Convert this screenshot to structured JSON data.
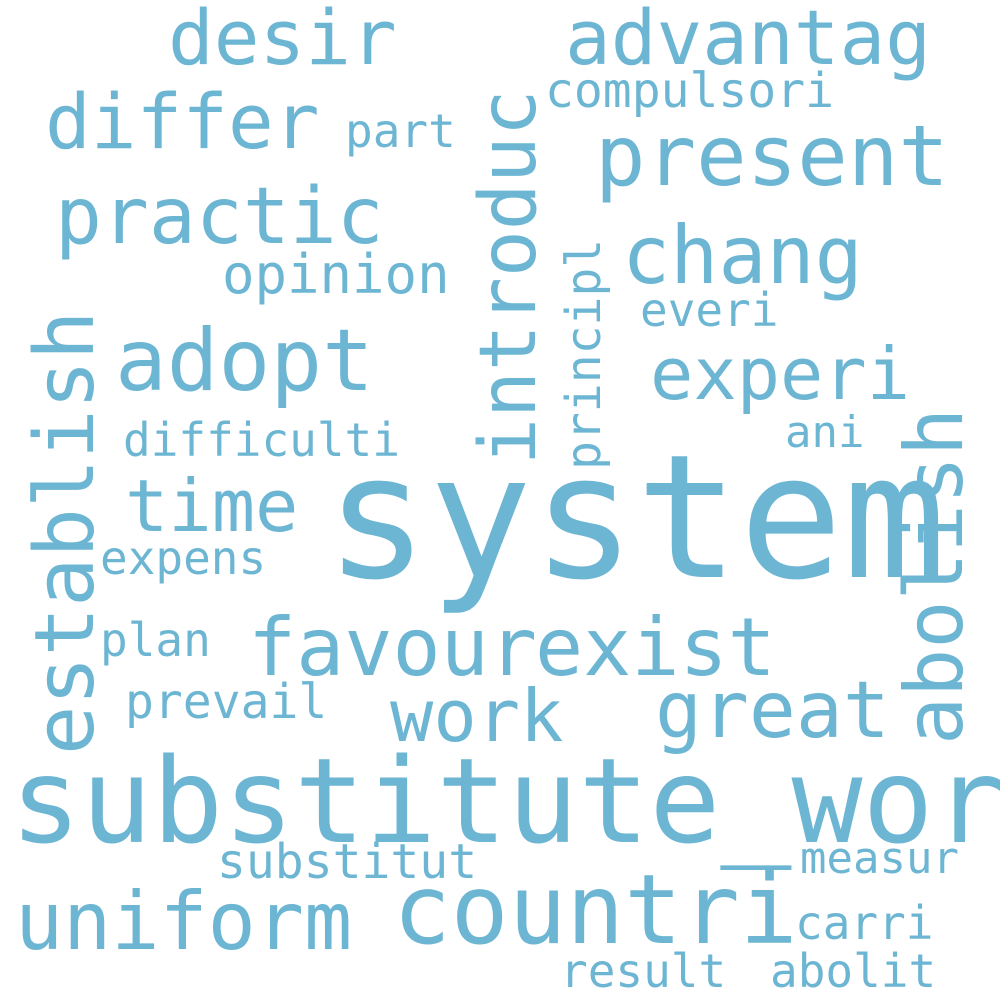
{
  "cloud": {
    "color": "#6db6d3",
    "background": "#ffffff",
    "words": {
      "system": "system",
      "substitute_word": "substitute_word",
      "countri": "countri",
      "uniform": "uniform",
      "favour": "favour",
      "exist": "exist",
      "establish": "establish",
      "introduc": "introduc",
      "abolish": "abolish",
      "adopt": "adopt",
      "present": "present",
      "practic": "practic",
      "differ": "differ",
      "advantag": "advantag",
      "desir": "desir",
      "chang": "chang",
      "experi": "experi",
      "time": "time",
      "work": "work",
      "great": "great",
      "opinion": "opinion",
      "compulsori": "compulsori",
      "part": "part",
      "principl": "principl",
      "everi": "everi",
      "difficulti": "difficulti",
      "ani": "ani",
      "expens": "expens",
      "plan": "plan",
      "prevail": "prevail",
      "substitut": "substitut",
      "measur": "measur",
      "carri": "carri",
      "result": "result",
      "abolit": "abolit"
    }
  }
}
